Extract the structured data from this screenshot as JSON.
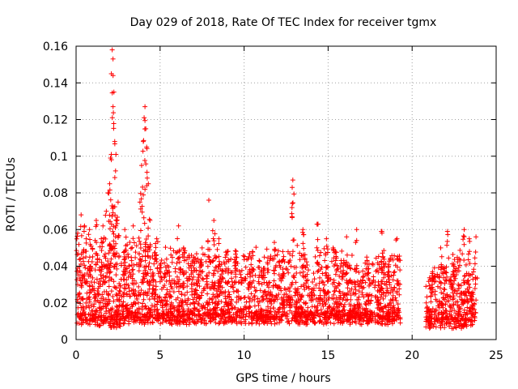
{
  "chart_data": {
    "type": "scatter",
    "title": "Day 029 of 2018, Rate Of TEC Index for receiver tgmx",
    "xlabel": "GPS time / hours",
    "ylabel": "ROTI / TECUs",
    "xlim": [
      0,
      25
    ],
    "ylim": [
      0,
      0.16
    ],
    "xticks": [
      0,
      5,
      10,
      15,
      20,
      25
    ],
    "xtick_labels": [
      "0",
      "5",
      "10",
      "15",
      "20",
      "25"
    ],
    "yticks": [
      0,
      0.02,
      0.04,
      0.06,
      0.08,
      0.1,
      0.12,
      0.14,
      0.16
    ],
    "ytick_labels": [
      "0",
      "0.02",
      "0.04",
      "0.06",
      "0.08",
      "0.1",
      "0.12",
      "0.14",
      "0.16"
    ],
    "grid": true,
    "marker": "+",
    "color": "#ff0000",
    "data_gap_hours": [
      19.3,
      20.8
    ],
    "density_profile": {
      "description": "Approximate point cloud envelope read from the plot",
      "x": [
        0.0,
        1.0,
        2.0,
        3.0,
        4.0,
        5.0,
        6.0,
        7.0,
        8.0,
        9.0,
        10.0,
        11.0,
        12.0,
        13.0,
        14.0,
        15.0,
        16.0,
        17.0,
        18.0,
        19.0,
        21.0,
        22.0,
        23.0,
        24.0
      ],
      "typical_low": [
        0.008,
        0.008,
        0.005,
        0.008,
        0.008,
        0.008,
        0.008,
        0.008,
        0.008,
        0.008,
        0.008,
        0.008,
        0.008,
        0.008,
        0.008,
        0.008,
        0.008,
        0.008,
        0.008,
        0.008,
        0.006,
        0.006,
        0.005,
        0.008
      ],
      "typical_high": [
        0.045,
        0.05,
        0.05,
        0.05,
        0.05,
        0.045,
        0.045,
        0.045,
        0.045,
        0.045,
        0.045,
        0.045,
        0.045,
        0.05,
        0.045,
        0.045,
        0.045,
        0.035,
        0.045,
        0.045,
        0.03,
        0.04,
        0.045,
        0.04
      ]
    },
    "peaks": [
      {
        "x": 0.1,
        "y": 0.058
      },
      {
        "x": 0.3,
        "y": 0.068
      },
      {
        "x": 0.5,
        "y": 0.062
      },
      {
        "x": 0.6,
        "y": 0.055
      },
      {
        "x": 0.8,
        "y": 0.06
      },
      {
        "x": 1.5,
        "y": 0.055
      },
      {
        "x": 1.8,
        "y": 0.07
      },
      {
        "x": 1.9,
        "y": 0.08
      },
      {
        "x": 1.2,
        "y": 0.065
      },
      {
        "x": 1.6,
        "y": 0.062
      },
      {
        "x": 2.0,
        "y": 0.085
      },
      {
        "x": 2.05,
        "y": 0.099
      },
      {
        "x": 2.1,
        "y": 0.145
      },
      {
        "x": 2.15,
        "y": 0.158
      },
      {
        "x": 2.2,
        "y": 0.127
      },
      {
        "x": 2.25,
        "y": 0.135
      },
      {
        "x": 2.3,
        "y": 0.108
      },
      {
        "x": 2.35,
        "y": 0.092
      },
      {
        "x": 2.5,
        "y": 0.075
      },
      {
        "x": 2.9,
        "y": 0.06
      },
      {
        "x": 3.4,
        "y": 0.062
      },
      {
        "x": 3.8,
        "y": 0.075
      },
      {
        "x": 3.9,
        "y": 0.095
      },
      {
        "x": 4.0,
        "y": 0.108
      },
      {
        "x": 4.05,
        "y": 0.121
      },
      {
        "x": 4.1,
        "y": 0.127
      },
      {
        "x": 4.15,
        "y": 0.115
      },
      {
        "x": 4.2,
        "y": 0.105
      },
      {
        "x": 4.3,
        "y": 0.085
      },
      {
        "x": 4.4,
        "y": 0.065
      },
      {
        "x": 4.8,
        "y": 0.055
      },
      {
        "x": 6.1,
        "y": 0.062
      },
      {
        "x": 6.4,
        "y": 0.05
      },
      {
        "x": 7.0,
        "y": 0.045
      },
      {
        "x": 7.5,
        "y": 0.05
      },
      {
        "x": 7.9,
        "y": 0.076
      },
      {
        "x": 8.2,
        "y": 0.065
      },
      {
        "x": 8.5,
        "y": 0.055
      },
      {
        "x": 9.0,
        "y": 0.048
      },
      {
        "x": 9.5,
        "y": 0.045
      },
      {
        "x": 10.5,
        "y": 0.048
      },
      {
        "x": 11.2,
        "y": 0.045
      },
      {
        "x": 11.8,
        "y": 0.053
      },
      {
        "x": 12.3,
        "y": 0.048
      },
      {
        "x": 12.9,
        "y": 0.087
      },
      {
        "x": 12.85,
        "y": 0.072
      },
      {
        "x": 13.5,
        "y": 0.06
      },
      {
        "x": 14.4,
        "y": 0.063
      },
      {
        "x": 14.9,
        "y": 0.055
      },
      {
        "x": 15.3,
        "y": 0.05
      },
      {
        "x": 16.1,
        "y": 0.056
      },
      {
        "x": 16.7,
        "y": 0.06
      },
      {
        "x": 17.3,
        "y": 0.045
      },
      {
        "x": 18.2,
        "y": 0.059
      },
      {
        "x": 18.6,
        "y": 0.04
      },
      {
        "x": 19.1,
        "y": 0.055
      },
      {
        "x": 21.2,
        "y": 0.036
      },
      {
        "x": 21.7,
        "y": 0.05
      },
      {
        "x": 22.1,
        "y": 0.059
      },
      {
        "x": 22.5,
        "y": 0.04
      },
      {
        "x": 23.1,
        "y": 0.06
      },
      {
        "x": 23.4,
        "y": 0.055
      },
      {
        "x": 23.8,
        "y": 0.056
      }
    ]
  }
}
